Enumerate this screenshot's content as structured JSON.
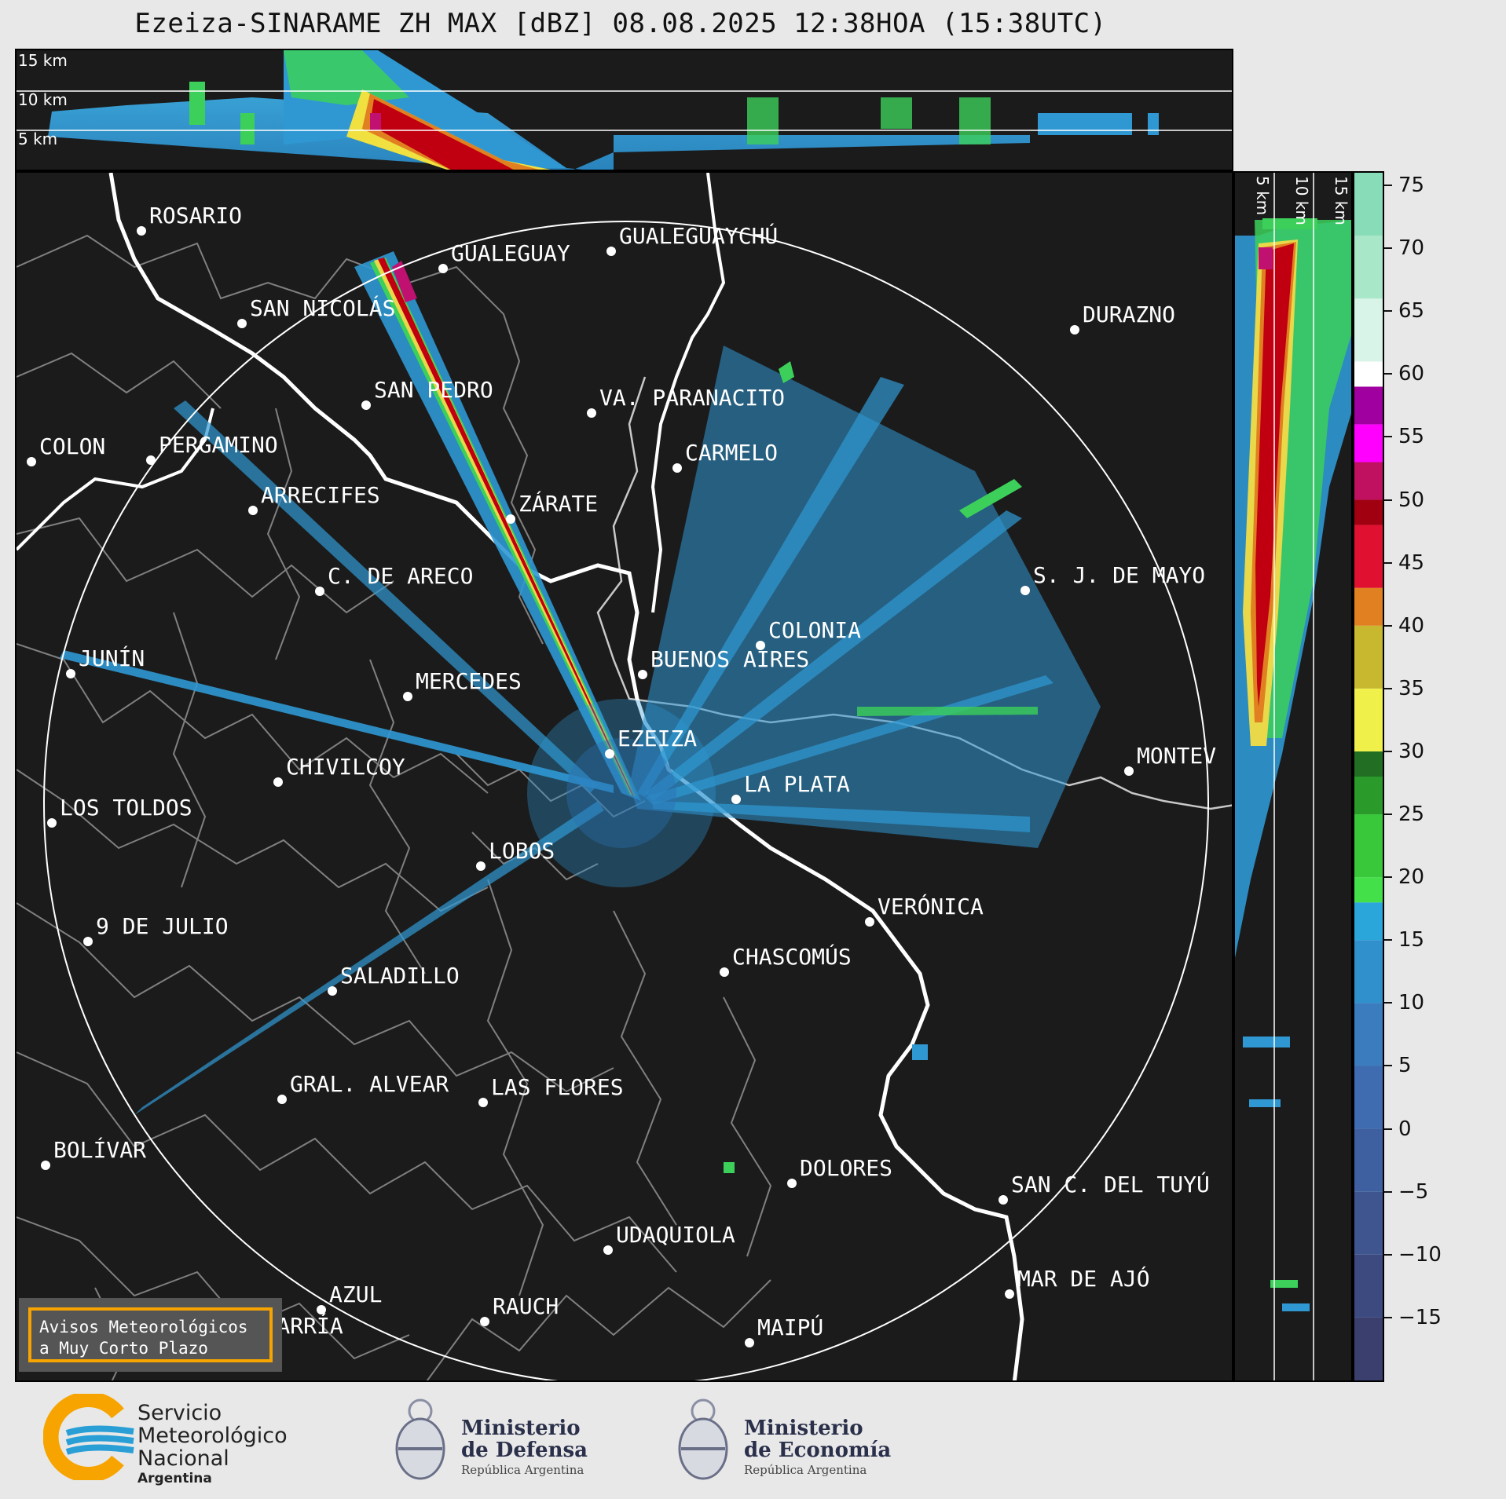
{
  "title": "Ezeiza-SINARAME ZH MAX [dBZ] 08.08.2025 12:38HOA (15:38UTC)",
  "height_labels_top": [
    "15 km",
    "10 km",
    "5 km"
  ],
  "height_labels_side": [
    "5 km",
    "10 km",
    "15 km"
  ],
  "cities": [
    {
      "name": "ROSARIO"
    },
    {
      "name": "GUALEGUAYCHÚ"
    },
    {
      "name": "GUALEGUAY"
    },
    {
      "name": "SAN NICOLÁS"
    },
    {
      "name": "DURAZNO"
    },
    {
      "name": "SAN PEDRO"
    },
    {
      "name": "VA. PARANACITO"
    },
    {
      "name": "COLON"
    },
    {
      "name": "PERGAMINO"
    },
    {
      "name": "CARMELO"
    },
    {
      "name": "ARRECIFES"
    },
    {
      "name": "ZÁRATE"
    },
    {
      "name": "S. J. DE MAYO"
    },
    {
      "name": "C. DE ARECO"
    },
    {
      "name": "COLONIA"
    },
    {
      "name": "JUNÍN"
    },
    {
      "name": "BUENOS AIRES"
    },
    {
      "name": "MERCEDES"
    },
    {
      "name": "EZEIZA"
    },
    {
      "name": "MONTEV"
    },
    {
      "name": "CHIVILCOY"
    },
    {
      "name": "LA PLATA"
    },
    {
      "name": "LOS TOLDOS"
    },
    {
      "name": "LOBOS"
    },
    {
      "name": "VERÓNICA"
    },
    {
      "name": "9 DE JULIO"
    },
    {
      "name": "CHASCOMÚS"
    },
    {
      "name": "SALADILLO"
    },
    {
      "name": "GRAL. ALVEAR"
    },
    {
      "name": "LAS FLORES"
    },
    {
      "name": "BOLÍVAR"
    },
    {
      "name": "DOLORES"
    },
    {
      "name": "SAN C. DEL TUYÚ"
    },
    {
      "name": "UDAQUIOLA"
    },
    {
      "name": "MAR DE AJÓ"
    },
    {
      "name": "AZUL"
    },
    {
      "name": "RAUCH"
    },
    {
      "name": "OLAVARRÍA"
    },
    {
      "name": "MAIPÚ"
    }
  ],
  "colorbar": {
    "min": -20,
    "max": 76,
    "ticks": [
      "75",
      "70",
      "65",
      "60",
      "55",
      "50",
      "45",
      "40",
      "35",
      "30",
      "25",
      "20",
      "15",
      "10",
      "5",
      "0",
      "−5",
      "−10",
      "−15"
    ],
    "tick_values": [
      75,
      70,
      65,
      60,
      55,
      50,
      45,
      40,
      35,
      30,
      25,
      20,
      15,
      10,
      5,
      0,
      -5,
      -10,
      -15
    ]
  },
  "avisos": {
    "line1": "Avisos Meteorológicos",
    "line2": "a Muy Corto Plazo"
  },
  "logos": {
    "smn": {
      "line1": "Servicio",
      "line2": "Meteorológico",
      "line3": "Nacional",
      "line4": "Argentina"
    },
    "defensa": {
      "line1": "Ministerio",
      "line2": "de Defensa",
      "line3": "República Argentina"
    },
    "economia": {
      "line1": "Ministerio",
      "line2": "de Economía",
      "line3": "República Argentina"
    }
  },
  "colors": {
    "background": "#1b1b1b",
    "rain_light": "#2a9fd6",
    "rain_green": "#39e03a",
    "rain_red": "#c00010",
    "orange": "#f7a400"
  }
}
